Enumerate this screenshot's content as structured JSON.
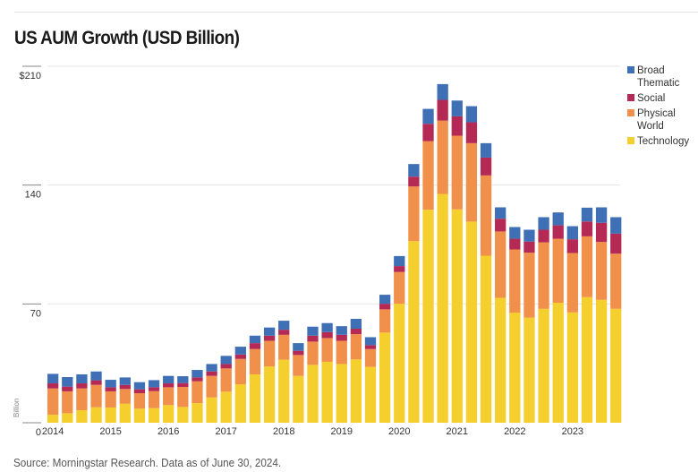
{
  "title": "US AUM Growth (USD Billion)",
  "source": "Source: Morningstar Research. Data as of June 30, 2024.",
  "chart_data": {
    "type": "bar",
    "stacked": true,
    "title": "US AUM Growth (USD Billion)",
    "xlabel": "",
    "ylabel": "Billion",
    "ylim": [
      0,
      210
    ],
    "yticks": [
      0,
      70,
      140,
      210
    ],
    "ytick_labels": [
      "0",
      "70",
      "140",
      "$210"
    ],
    "xtick_labels": [
      "2014",
      "2015",
      "2016",
      "2017",
      "2018",
      "2019",
      "2020",
      "2021",
      "2022",
      "2023"
    ],
    "categories": [
      "2014Q1",
      "2014Q2",
      "2014Q3",
      "2014Q4",
      "2015Q1",
      "2015Q2",
      "2015Q3",
      "2015Q4",
      "2016Q1",
      "2016Q2",
      "2016Q3",
      "2016Q4",
      "2017Q1",
      "2017Q2",
      "2017Q3",
      "2017Q4",
      "2018Q1",
      "2018Q2",
      "2018Q3",
      "2018Q4",
      "2019Q1",
      "2019Q2",
      "2019Q3",
      "2019Q4",
      "2020Q1",
      "2020Q2",
      "2020Q3",
      "2020Q4",
      "2021Q1",
      "2021Q2",
      "2021Q3",
      "2021Q4",
      "2022Q1",
      "2022Q2",
      "2022Q3",
      "2022Q4",
      "2023Q1",
      "2023Q2",
      "2023Q3",
      "2023Q4"
    ],
    "legend_position": "right",
    "grid": true,
    "series": [
      {
        "name": "Technology",
        "color": "#f5cf2e",
        "values": [
          4.7,
          5.6,
          7.4,
          9.1,
          9.0,
          11.2,
          8.3,
          8.6,
          10.4,
          9.3,
          11.6,
          14.9,
          18.3,
          22.7,
          28.5,
          33.2,
          37.1,
          27.6,
          34.1,
          35.9,
          34.6,
          37.3,
          32.9,
          53.1,
          70.1,
          107.0,
          125.5,
          134.8,
          125.7,
          118.5,
          98.4,
          73.6,
          64.9,
          61.9,
          67.1,
          70.7,
          65.0,
          74.0,
          72.4,
          67.1
        ]
      },
      {
        "name": "Physical World",
        "color": "#f0904a",
        "values": [
          15.5,
          12.9,
          12.8,
          13.2,
          9.5,
          8.7,
          9.1,
          10.0,
          10.5,
          11.8,
          12.8,
          12.7,
          13.7,
          14.9,
          14.9,
          15.1,
          14.7,
          12.3,
          13.7,
          14.0,
          13.7,
          14.9,
          10.5,
          13.7,
          18.7,
          32.2,
          40.4,
          43.2,
          43.4,
          46.2,
          47.3,
          39.1,
          37.2,
          38.3,
          39.2,
          37.7,
          35.0,
          35.8,
          34.1,
          32.5
        ]
      },
      {
        "name": "Social",
        "color": "#b52a55",
        "values": [
          3.0,
          2.8,
          3.0,
          2.7,
          2.4,
          2.4,
          2.3,
          2.3,
          2.3,
          2.3,
          2.3,
          2.6,
          2.6,
          2.6,
          3.5,
          3.0,
          3.0,
          2.5,
          3.5,
          3.5,
          3.5,
          3.2,
          2.3,
          3.3,
          3.5,
          5.8,
          10.2,
          12.2,
          11.4,
          12.3,
          10.5,
          7.5,
          6.3,
          6.5,
          7.4,
          7.9,
          8.1,
          8.8,
          11.3,
          11.8
        ]
      },
      {
        "name": "Broad Thematic",
        "color": "#3f6fb5",
        "values": [
          5.6,
          5.6,
          5.3,
          5.2,
          4.4,
          4.4,
          4.2,
          4.2,
          4.4,
          4.0,
          4.4,
          4.4,
          4.8,
          4.6,
          4.4,
          4.8,
          5.3,
          4.5,
          5.3,
          5.3,
          5.1,
          5.8,
          4.7,
          5.3,
          5.9,
          7.4,
          8.8,
          9.3,
          9.3,
          9.5,
          8.5,
          6.7,
          6.9,
          7.0,
          7.4,
          7.6,
          7.7,
          8.1,
          9.1,
          9.7
        ]
      }
    ],
    "legend": [
      {
        "line1": "Broad",
        "line2": "Thematic",
        "color": "#3f6fb5"
      },
      {
        "line1": "Social",
        "line2": "",
        "color": "#b52a55"
      },
      {
        "line1": "Physical",
        "line2": "World",
        "color": "#f0904a"
      },
      {
        "line1": "Technology",
        "line2": "",
        "color": "#f5cf2e"
      }
    ]
  }
}
